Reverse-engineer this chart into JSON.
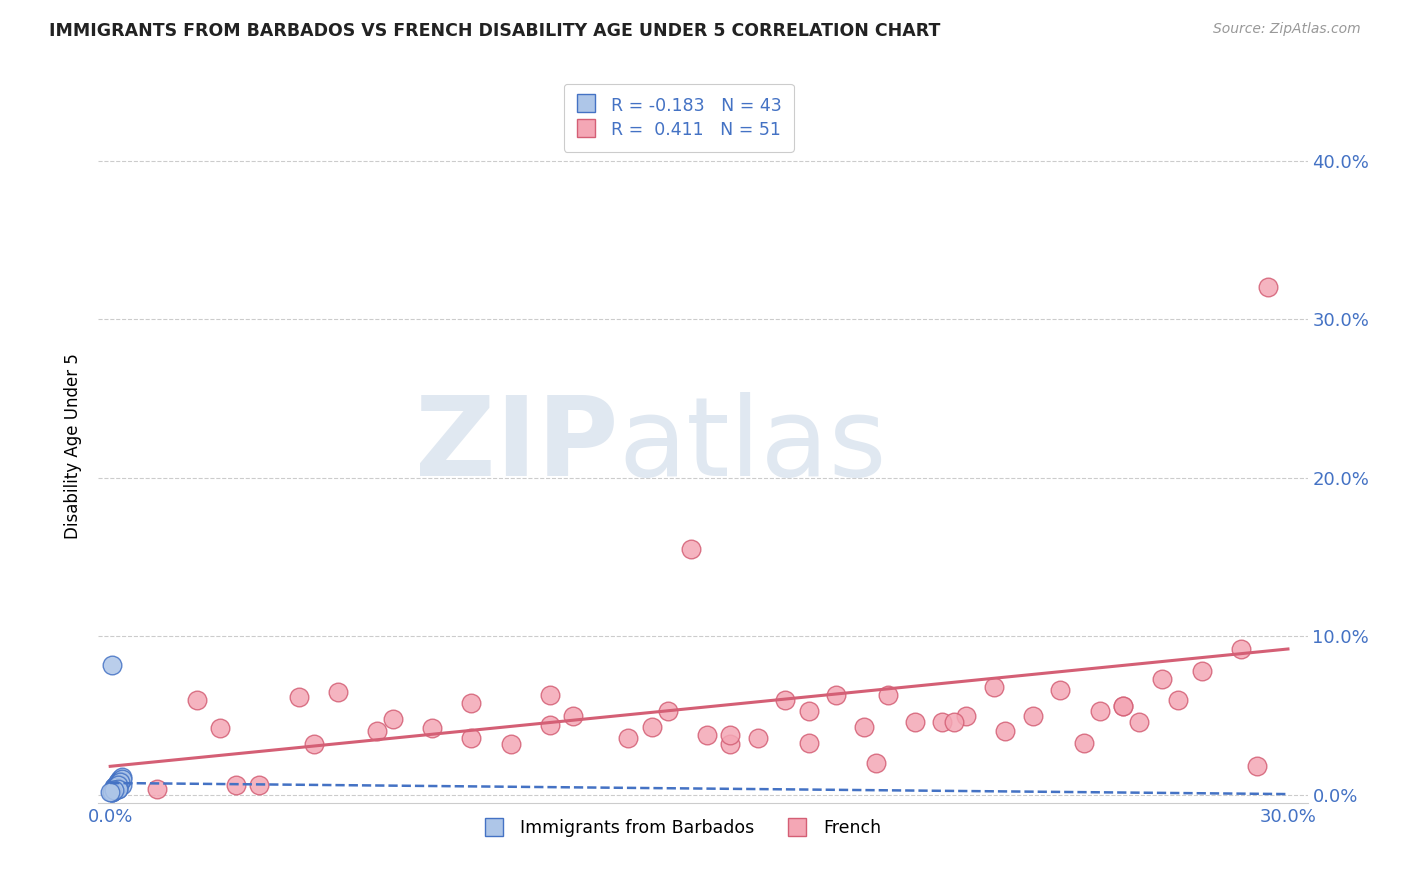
{
  "title": "IMMIGRANTS FROM BARBADOS VS FRENCH DISABILITY AGE UNDER 5 CORRELATION CHART",
  "source": "Source: ZipAtlas.com",
  "ylabel": "Disability Age Under 5",
  "ytick_labels": [
    "0.0%",
    "10.0%",
    "20.0%",
    "30.0%",
    "40.0%"
  ],
  "ytick_values": [
    0.0,
    0.1,
    0.2,
    0.3,
    0.4
  ],
  "xlim": [
    -0.003,
    0.305
  ],
  "ylim": [
    -0.005,
    0.445
  ],
  "legend_label1": "Immigrants from Barbados",
  "legend_label2": "French",
  "R1": -0.183,
  "N1": 43,
  "R2": 0.411,
  "N2": 51,
  "color_blue": "#aec6e8",
  "color_blue_edge": "#4472c4",
  "color_pink": "#f4a7b5",
  "color_pink_edge": "#d45f75",
  "color_blue_trend": "#4472c4",
  "color_pink_trend": "#d45f75",
  "blue_points_x": [
    0.0005,
    0.001,
    0.0015,
    0.001,
    0.002,
    0.0015,
    0.0025,
    0.001,
    0.002,
    0.003,
    0.0015,
    0.001,
    0.002,
    0.0015,
    0.001,
    0.0025,
    0.001,
    0.002,
    0.002,
    0.003,
    0.001,
    0.0015,
    0.001,
    0.002,
    0.001,
    0.0025,
    0.0015,
    0.0005,
    0.003,
    0.001,
    0.002,
    0.002,
    0.001,
    0.001,
    0.0025,
    0.0015,
    0.002,
    0.0005,
    0.001,
    0.002,
    0.0005,
    0.001,
    0.0
  ],
  "blue_points_y": [
    0.082,
    0.004,
    0.004,
    0.005,
    0.008,
    0.006,
    0.01,
    0.003,
    0.005,
    0.006,
    0.004,
    0.003,
    0.007,
    0.004,
    0.005,
    0.009,
    0.004,
    0.006,
    0.007,
    0.011,
    0.004,
    0.005,
    0.003,
    0.008,
    0.004,
    0.009,
    0.005,
    0.002,
    0.01,
    0.003,
    0.004,
    0.007,
    0.003,
    0.003,
    0.008,
    0.005,
    0.006,
    0.002,
    0.003,
    0.004,
    0.002,
    0.003,
    0.002
  ],
  "pink_points_x": [
    0.012,
    0.022,
    0.028,
    0.032,
    0.048,
    0.058,
    0.068,
    0.082,
    0.092,
    0.102,
    0.112,
    0.118,
    0.132,
    0.142,
    0.152,
    0.158,
    0.172,
    0.178,
    0.192,
    0.198,
    0.212,
    0.218,
    0.228,
    0.242,
    0.252,
    0.258,
    0.268,
    0.278,
    0.288,
    0.295,
    0.038,
    0.052,
    0.072,
    0.092,
    0.112,
    0.138,
    0.158,
    0.178,
    0.195,
    0.215,
    0.235,
    0.258,
    0.272,
    0.148,
    0.165,
    0.185,
    0.205,
    0.225,
    0.248,
    0.262,
    0.292
  ],
  "pink_points_y": [
    0.004,
    0.06,
    0.042,
    0.006,
    0.062,
    0.065,
    0.04,
    0.042,
    0.036,
    0.032,
    0.044,
    0.05,
    0.036,
    0.053,
    0.038,
    0.032,
    0.06,
    0.053,
    0.043,
    0.063,
    0.046,
    0.05,
    0.04,
    0.066,
    0.053,
    0.056,
    0.073,
    0.078,
    0.092,
    0.32,
    0.006,
    0.032,
    0.048,
    0.058,
    0.063,
    0.043,
    0.038,
    0.033,
    0.02,
    0.046,
    0.05,
    0.056,
    0.06,
    0.155,
    0.036,
    0.063,
    0.046,
    0.068,
    0.033,
    0.046,
    0.018
  ],
  "blue_trend_x": [
    0.0,
    0.3
  ],
  "blue_trend_y": [
    0.0075,
    0.0005
  ],
  "pink_trend_x": [
    0.0,
    0.3
  ],
  "pink_trend_y": [
    0.018,
    0.092
  ]
}
